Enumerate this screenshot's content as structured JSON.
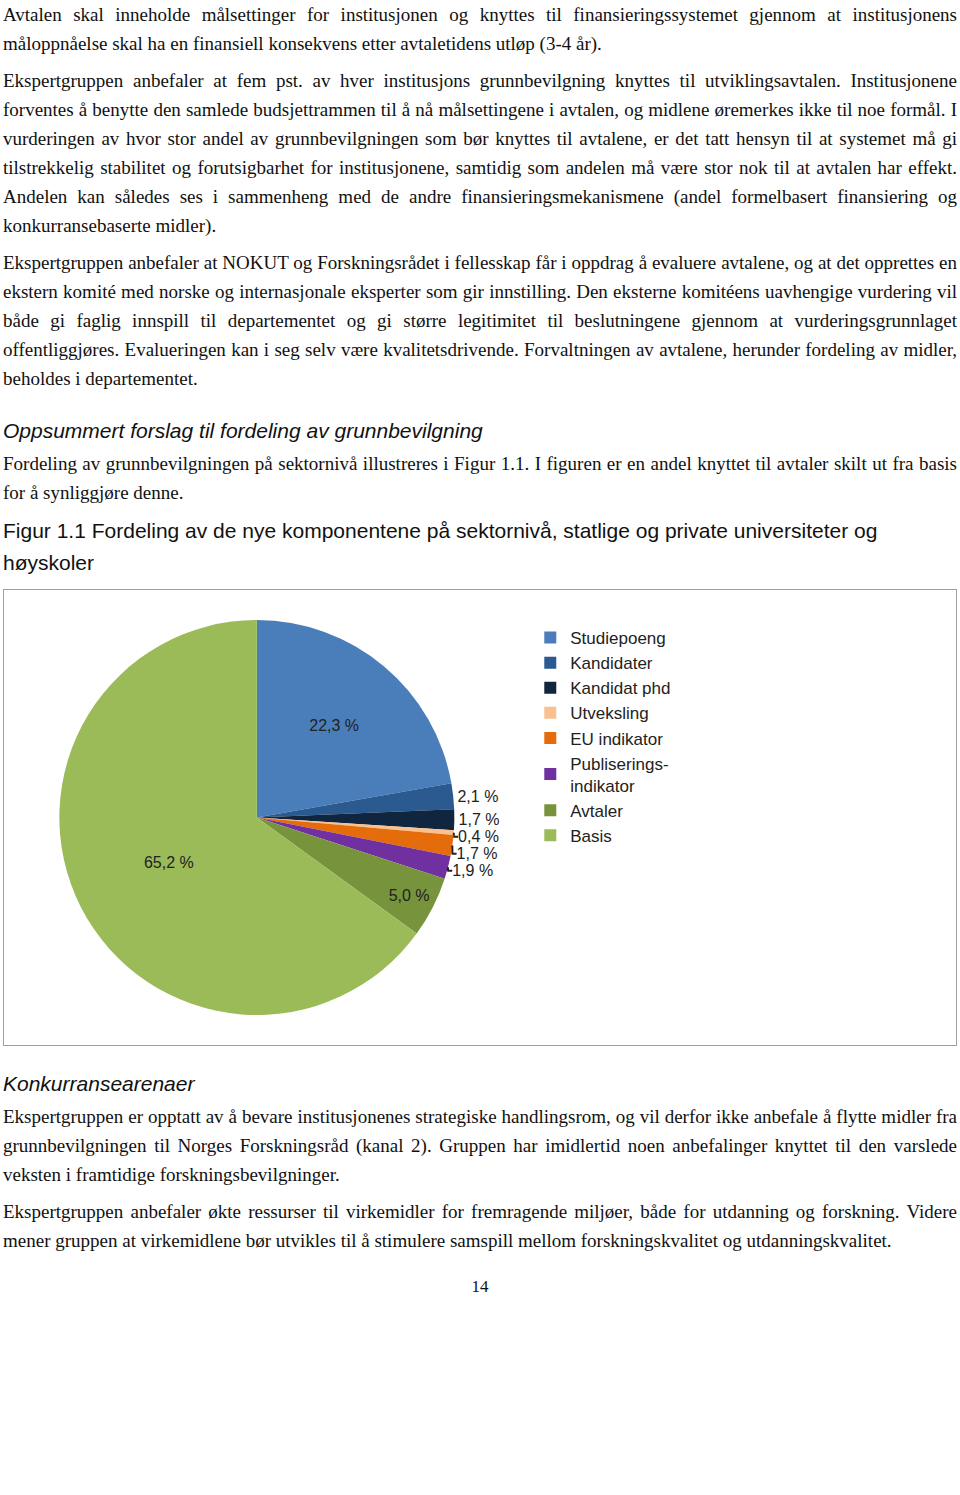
{
  "document": {
    "section_1": {
      "paragraphs": [
        "Avtalen skal inneholde målsettinger for institusjonen og knyttes til finansieringssystemet gjennom at institusjonens måloppnåelse skal ha en finansiell konsekvens etter avtaletidens utløp (3-4 år).",
        "Ekspertgruppen anbefaler at fem pst. av hver institusjons grunnbevilgning knyttes til utviklingsavtalen. Institusjonene forventes å benytte den samlede budsjettrammen til å nå målsettingene i avtalen, og midlene øremerkes ikke til noe formål. I vurderingen av hvor stor andel av grunnbevilgningen som bør knyttes til avtalene, er det tatt hensyn til at systemet må gi tilstrekkelig stabilitet og forutsigbarhet for institusjonene, samtidig som andelen må være stor nok til at avtalen har effekt. Andelen kan således ses i sammenheng med de andre finansieringsmekanismene (andel formelbasert finansiering og konkurransebaserte midler).",
        "Ekspertgruppen anbefaler at NOKUT og Forskningsrådet i fellesskap får i oppdrag å evaluere avtalene, og at det opprettes en ekstern komité med norske og internasjonale eksperter som gir innstilling. Den eksterne komitéens uavhengige vurdering vil både gi faglig innspill til departementet og gi større legitimitet til beslutningene gjennom at vurderingsgrunnlaget offentliggjøres. Evalueringen kan i seg selv være kvalitetsdrivende. Forvaltningen av avtalene, herunder fordeling av midler, beholdes i departementet."
      ]
    },
    "section_2": {
      "heading": "Oppsummert forslag til fordeling av grunnbevilgning",
      "paragraphs": [
        "Fordeling av grunnbevilgningen på sektornivå illustreres i Figur 1.1. I figuren er en andel knyttet til avtaler skilt ut fra basis for å synliggjøre denne."
      ],
      "figure_caption": "Figur 1.1 Fordeling av de nye komponentene på sektornivå, statlige og private universiteter og høyskoler"
    },
    "section_3": {
      "heading": "Konkurransearenaer",
      "paragraphs": [
        "Ekspertgruppen er opptatt av å bevare institusjonenes strategiske handlingsrom, og vil derfor ikke anbefale å flytte midler fra grunnbevilgningen til Norges Forskningsråd (kanal 2). Gruppen har imidlertid noen anbefalinger knyttet til den varslede veksten i framtidige forskningsbevilgninger.",
        "Ekspertgruppen anbefaler økte ressurser til virkemidler for fremragende miljøer, både for utdanning og forskning. Videre mener gruppen at virkemidlene bør utvikles til å stimulere samspill mellom forskningskvalitet og utdanningskvalitet."
      ]
    },
    "page_number": 14
  },
  "chart_data": {
    "type": "pie",
    "categories": [
      "Studiepoeng",
      "Kandidater",
      "Kandidat phd",
      "Utveksling",
      "EU indikator",
      "Publiserings-\nindikator",
      "Avtaler",
      "Basis"
    ],
    "values": [
      22.3,
      2.1,
      1.7,
      0.4,
      1.7,
      1.9,
      5.0,
      65.2
    ],
    "value_labels": [
      "22,3 %",
      "2,1 %",
      "1,7 %",
      "0,4 %",
      "1,7 %",
      "1,9 %",
      "5,0 %",
      "65,2 %"
    ],
    "colors": [
      "#4a7ebb",
      "#2a5a8f",
      "#10253f",
      "#fac090",
      "#e46c0a",
      "#7030a0",
      "#77933c",
      "#9bbb59"
    ],
    "data_labels": true,
    "legend": "right"
  }
}
